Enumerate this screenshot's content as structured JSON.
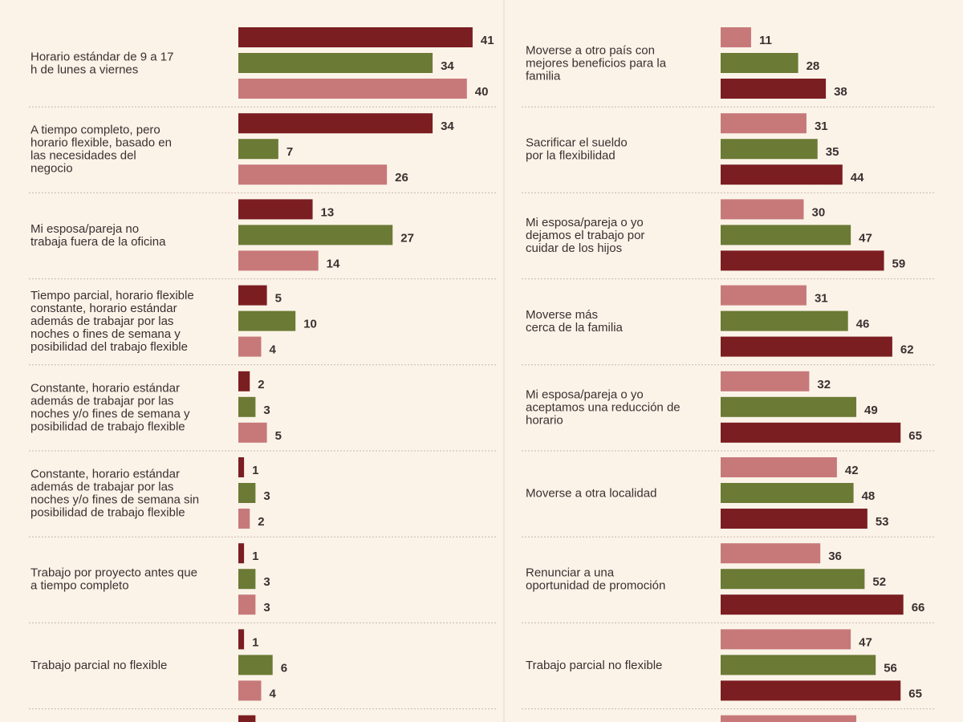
{
  "chart_data": [
    {
      "type": "bar",
      "orientation": "horizontal",
      "series_colors": [
        "#7b1e22",
        "#6b7a35",
        "#c7797a"
      ],
      "categories": [
        [
          "Horario estándar de 9 a 17",
          "h de lunes a viernes"
        ],
        [
          "A tiempo completo, pero",
          "horario flexible, basado en",
          "las necesidades del",
          "negocio"
        ],
        [
          "Mi esposa/pareja no",
          "trabaja fuera de la oficina"
        ],
        [
          "Tiempo parcial, horario flexible",
          "constante, horario estándar",
          "además de trabajar por las",
          "noches o fines de semana y",
          "posibilidad del trabajo flexible"
        ],
        [
          "Constante, horario estándar",
          "además de trabajar por las",
          "noches y/o fines de semana y",
          "posibilidad de trabajo flexible"
        ],
        [
          "Constante, horario estándar",
          "además de trabajar por las",
          "noches y/o fines de semana sin",
          "posibilidad de trabajo flexible"
        ],
        [
          "Trabajo por proyecto antes que",
          "a tiempo completo"
        ],
        [
          "Trabajo parcial no flexible"
        ],
        [
          ""
        ]
      ],
      "series": [
        {
          "values": [
            41,
            34,
            13,
            5,
            2,
            1,
            1,
            1,
            3
          ]
        },
        {
          "values": [
            34,
            7,
            27,
            10,
            3,
            3,
            3,
            6,
            null
          ]
        },
        {
          "values": [
            40,
            26,
            14,
            4,
            5,
            2,
            3,
            4,
            null
          ]
        }
      ],
      "xlim": [
        0,
        50
      ]
    },
    {
      "type": "bar",
      "orientation": "horizontal",
      "series_colors": [
        "#c7797a",
        "#6b7a35",
        "#7b1e22"
      ],
      "categories": [
        [
          "Moverse a otro país con",
          "mejores beneficios para la",
          "familia"
        ],
        [
          "Sacrificar el sueldo",
          "por la flexibilidad"
        ],
        [
          "Mi esposa/pareja o yo",
          "dejamos el trabajo por",
          "cuidar de los hijos"
        ],
        [
          "Moverse más",
          "cerca de la familia"
        ],
        [
          "Mi esposa/pareja o yo",
          "aceptamos una reducción de",
          "horario"
        ],
        [
          "Moverse a otra localidad"
        ],
        [
          "Renunciar a una",
          "oportunidad de promoción"
        ],
        [
          "Trabajo parcial no flexible"
        ],
        [
          ""
        ]
      ],
      "series": [
        {
          "values": [
            11,
            31,
            30,
            31,
            32,
            42,
            36,
            47,
            49
          ]
        },
        {
          "values": [
            28,
            35,
            47,
            46,
            49,
            48,
            52,
            56,
            null
          ]
        },
        {
          "values": [
            38,
            44,
            59,
            62,
            65,
            53,
            66,
            65,
            null
          ]
        }
      ],
      "xlim": [
        0,
        80
      ]
    }
  ]
}
